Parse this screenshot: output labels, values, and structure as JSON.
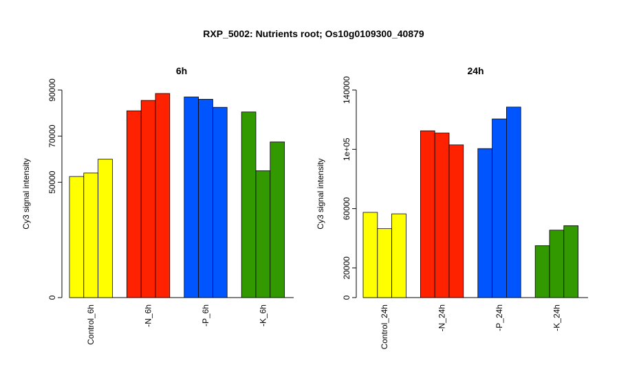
{
  "title": "RXP_5002: Nutrients root; Os10g0109300_40879",
  "chart_data": [
    {
      "type": "bar",
      "title": "6h",
      "ylabel": "Cy3 signal intensity",
      "ylim": [
        0,
        90000
      ],
      "yticks": [
        0,
        50000,
        70000,
        90000
      ],
      "ytick_labels": [
        "0",
        "50000",
        "70000",
        "90000"
      ],
      "categories": [
        "Control_6h",
        "-N_6h",
        "-P_6h",
        "-K_6h"
      ],
      "colors": [
        "#ffff00",
        "#ff2200",
        "#0055ff",
        "#339900"
      ],
      "values": [
        [
          52500,
          54000,
          60000
        ],
        [
          81000,
          85500,
          88500
        ],
        [
          87000,
          86000,
          82500
        ],
        [
          80500,
          55000,
          67500
        ]
      ]
    },
    {
      "type": "bar",
      "title": "24h",
      "ylabel": "Cy3 signal intensity",
      "ylim": [
        0,
        140000
      ],
      "yticks": [
        0,
        20000,
        60000,
        100000,
        140000
      ],
      "ytick_labels": [
        "0",
        "20000",
        "60000",
        "1e+05",
        "140000"
      ],
      "categories": [
        "Control_24h",
        "-N_24h",
        "-P_24h",
        "-K_24h"
      ],
      "colors": [
        "#ffff00",
        "#ff2200",
        "#0055ff",
        "#339900"
      ],
      "values": [
        [
          57500,
          46500,
          56500
        ],
        [
          112500,
          111000,
          103000
        ],
        [
          100500,
          120500,
          128500
        ],
        [
          35000,
          45500,
          48500
        ]
      ]
    }
  ]
}
